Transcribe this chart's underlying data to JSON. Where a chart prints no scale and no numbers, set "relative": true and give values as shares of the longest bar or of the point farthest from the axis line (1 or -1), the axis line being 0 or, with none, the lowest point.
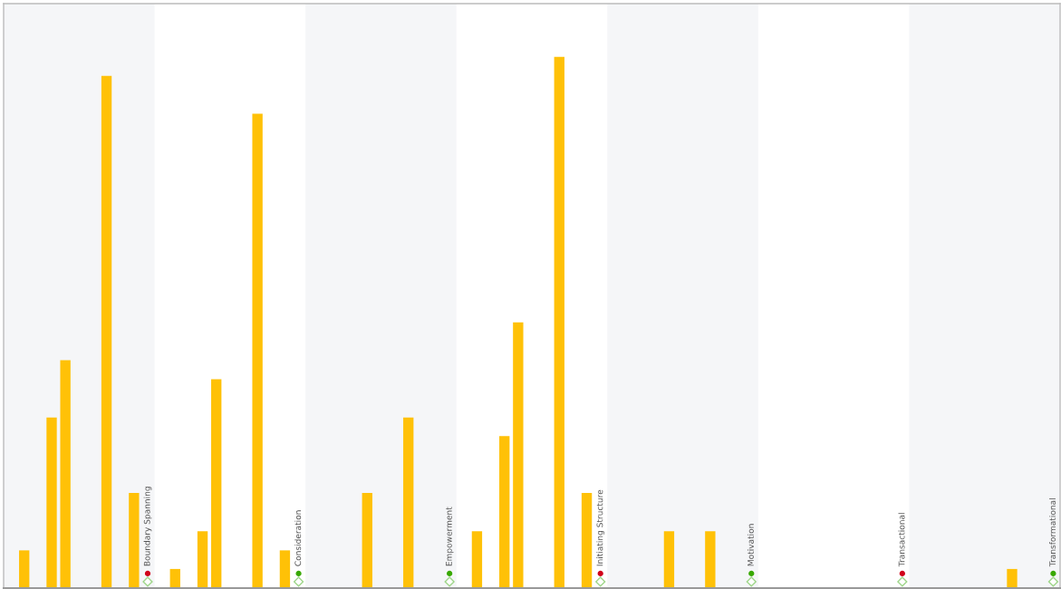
{
  "chart_data": {
    "type": "bar",
    "relative": true,
    "color": "#ffc107",
    "categories": [
      null,
      null,
      null,
      null,
      null,
      null,
      null,
      null,
      null,
      null,
      "Boundary Spanning",
      null,
      null,
      null,
      null,
      null,
      null,
      null,
      null,
      null,
      null,
      "Consideration",
      null,
      null,
      null,
      null,
      null,
      null,
      null,
      null,
      null,
      null,
      "Empowerment",
      null,
      null,
      null,
      null,
      null,
      null,
      null,
      null,
      null,
      null,
      "Initiating Structure",
      null,
      null,
      null,
      null,
      null,
      null,
      null,
      null,
      null,
      null,
      "Motivation",
      null,
      null,
      null,
      null,
      null,
      null,
      null,
      null,
      null,
      null,
      "Transactional",
      null,
      null,
      null,
      null,
      null,
      null,
      null,
      null,
      null,
      null,
      "Transformational"
    ],
    "values": [
      null,
      0.071,
      null,
      0.321,
      0.429,
      null,
      null,
      0.964,
      null,
      0.179,
      null,
      null,
      0.036,
      null,
      0.107,
      0.393,
      null,
      null,
      0.893,
      null,
      0.071,
      null,
      null,
      null,
      null,
      null,
      0.179,
      null,
      null,
      0.321,
      null,
      null,
      null,
      null,
      0.107,
      null,
      0.286,
      0.5,
      null,
      null,
      1,
      null,
      0.179,
      null,
      null,
      null,
      null,
      null,
      0.107,
      null,
      null,
      0.107,
      null,
      null,
      null,
      null,
      null,
      null,
      null,
      null,
      null,
      null,
      null,
      null,
      null,
      null,
      null,
      null,
      null,
      null,
      null,
      null,
      null,
      0.036,
      null,
      null,
      null
    ],
    "legend": false
  }
}
